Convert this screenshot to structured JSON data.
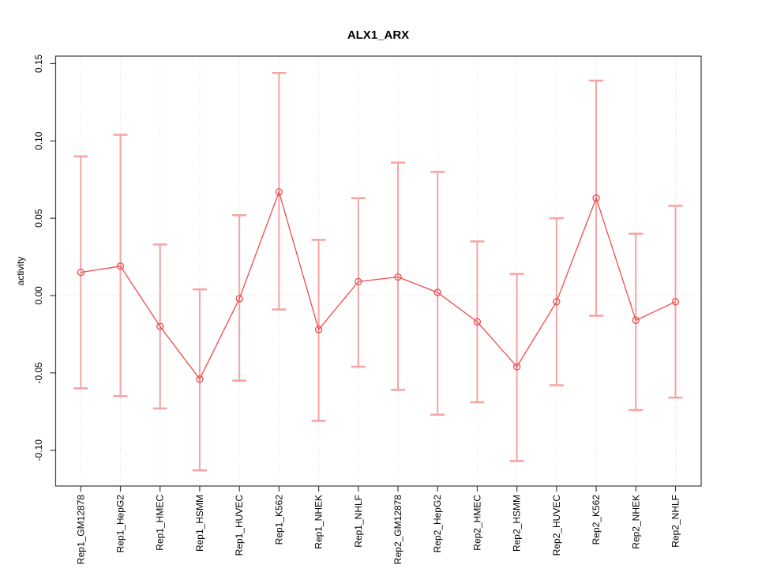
{
  "chart_data": {
    "type": "scatter",
    "subtype": "points-with-error-bars-connected-by-line",
    "title": "ALX1_ARX",
    "xlabel": "",
    "ylabel": "activity",
    "ylim": [
      -0.123,
      0.155
    ],
    "yticks": [
      0.15,
      0.1,
      0.05,
      0.0,
      -0.05,
      -0.1
    ],
    "ytick_labels": [
      "0.15",
      "0.10",
      "0.05",
      "0.00",
      "-0.05",
      "-0.10"
    ],
    "grid": "vertical dotted gridline at each category; dotted horizontal line at y=0",
    "legend_position": "none",
    "categories": [
      "Rep1_GM12878",
      "Rep1_HepG2",
      "Rep1_HMEC",
      "Rep1_HSMM",
      "Rep1_HUVEC",
      "Rep1_K562",
      "Rep1_NHEK",
      "Rep1_NHLF",
      "Rep2_GM12878",
      "Rep2_HepG2",
      "Rep2_HMEC",
      "Rep2_HSMM",
      "Rep2_HUVEC",
      "Rep2_K562",
      "Rep2_NHEK",
      "Rep2_NHLF"
    ],
    "series": [
      {
        "name": "activity",
        "values": [
          0.015,
          0.019,
          -0.02,
          -0.054,
          -0.002,
          0.067,
          -0.022,
          0.009,
          0.012,
          0.002,
          -0.017,
          -0.046,
          -0.004,
          0.063,
          -0.016,
          -0.004
        ],
        "upper": [
          0.09,
          0.104,
          0.033,
          0.004,
          0.052,
          0.144,
          0.036,
          0.063,
          0.086,
          0.08,
          0.035,
          0.014,
          0.05,
          0.139,
          0.04,
          0.058
        ],
        "lower": [
          -0.06,
          -0.065,
          -0.073,
          -0.113,
          -0.055,
          -0.009,
          -0.081,
          -0.046,
          -0.061,
          -0.077,
          -0.069,
          -0.107,
          -0.058,
          -0.013,
          -0.074,
          -0.066
        ]
      }
    ],
    "colors": {
      "error_bar": "#f5a3a3",
      "line": "#ef4b4b",
      "point": "#ef4b4b",
      "gridline": "#dcdcdc",
      "zero_line": "#d4d4d4",
      "box": "#3c3c3c",
      "text": "#000000",
      "background": "#ffffff"
    }
  }
}
